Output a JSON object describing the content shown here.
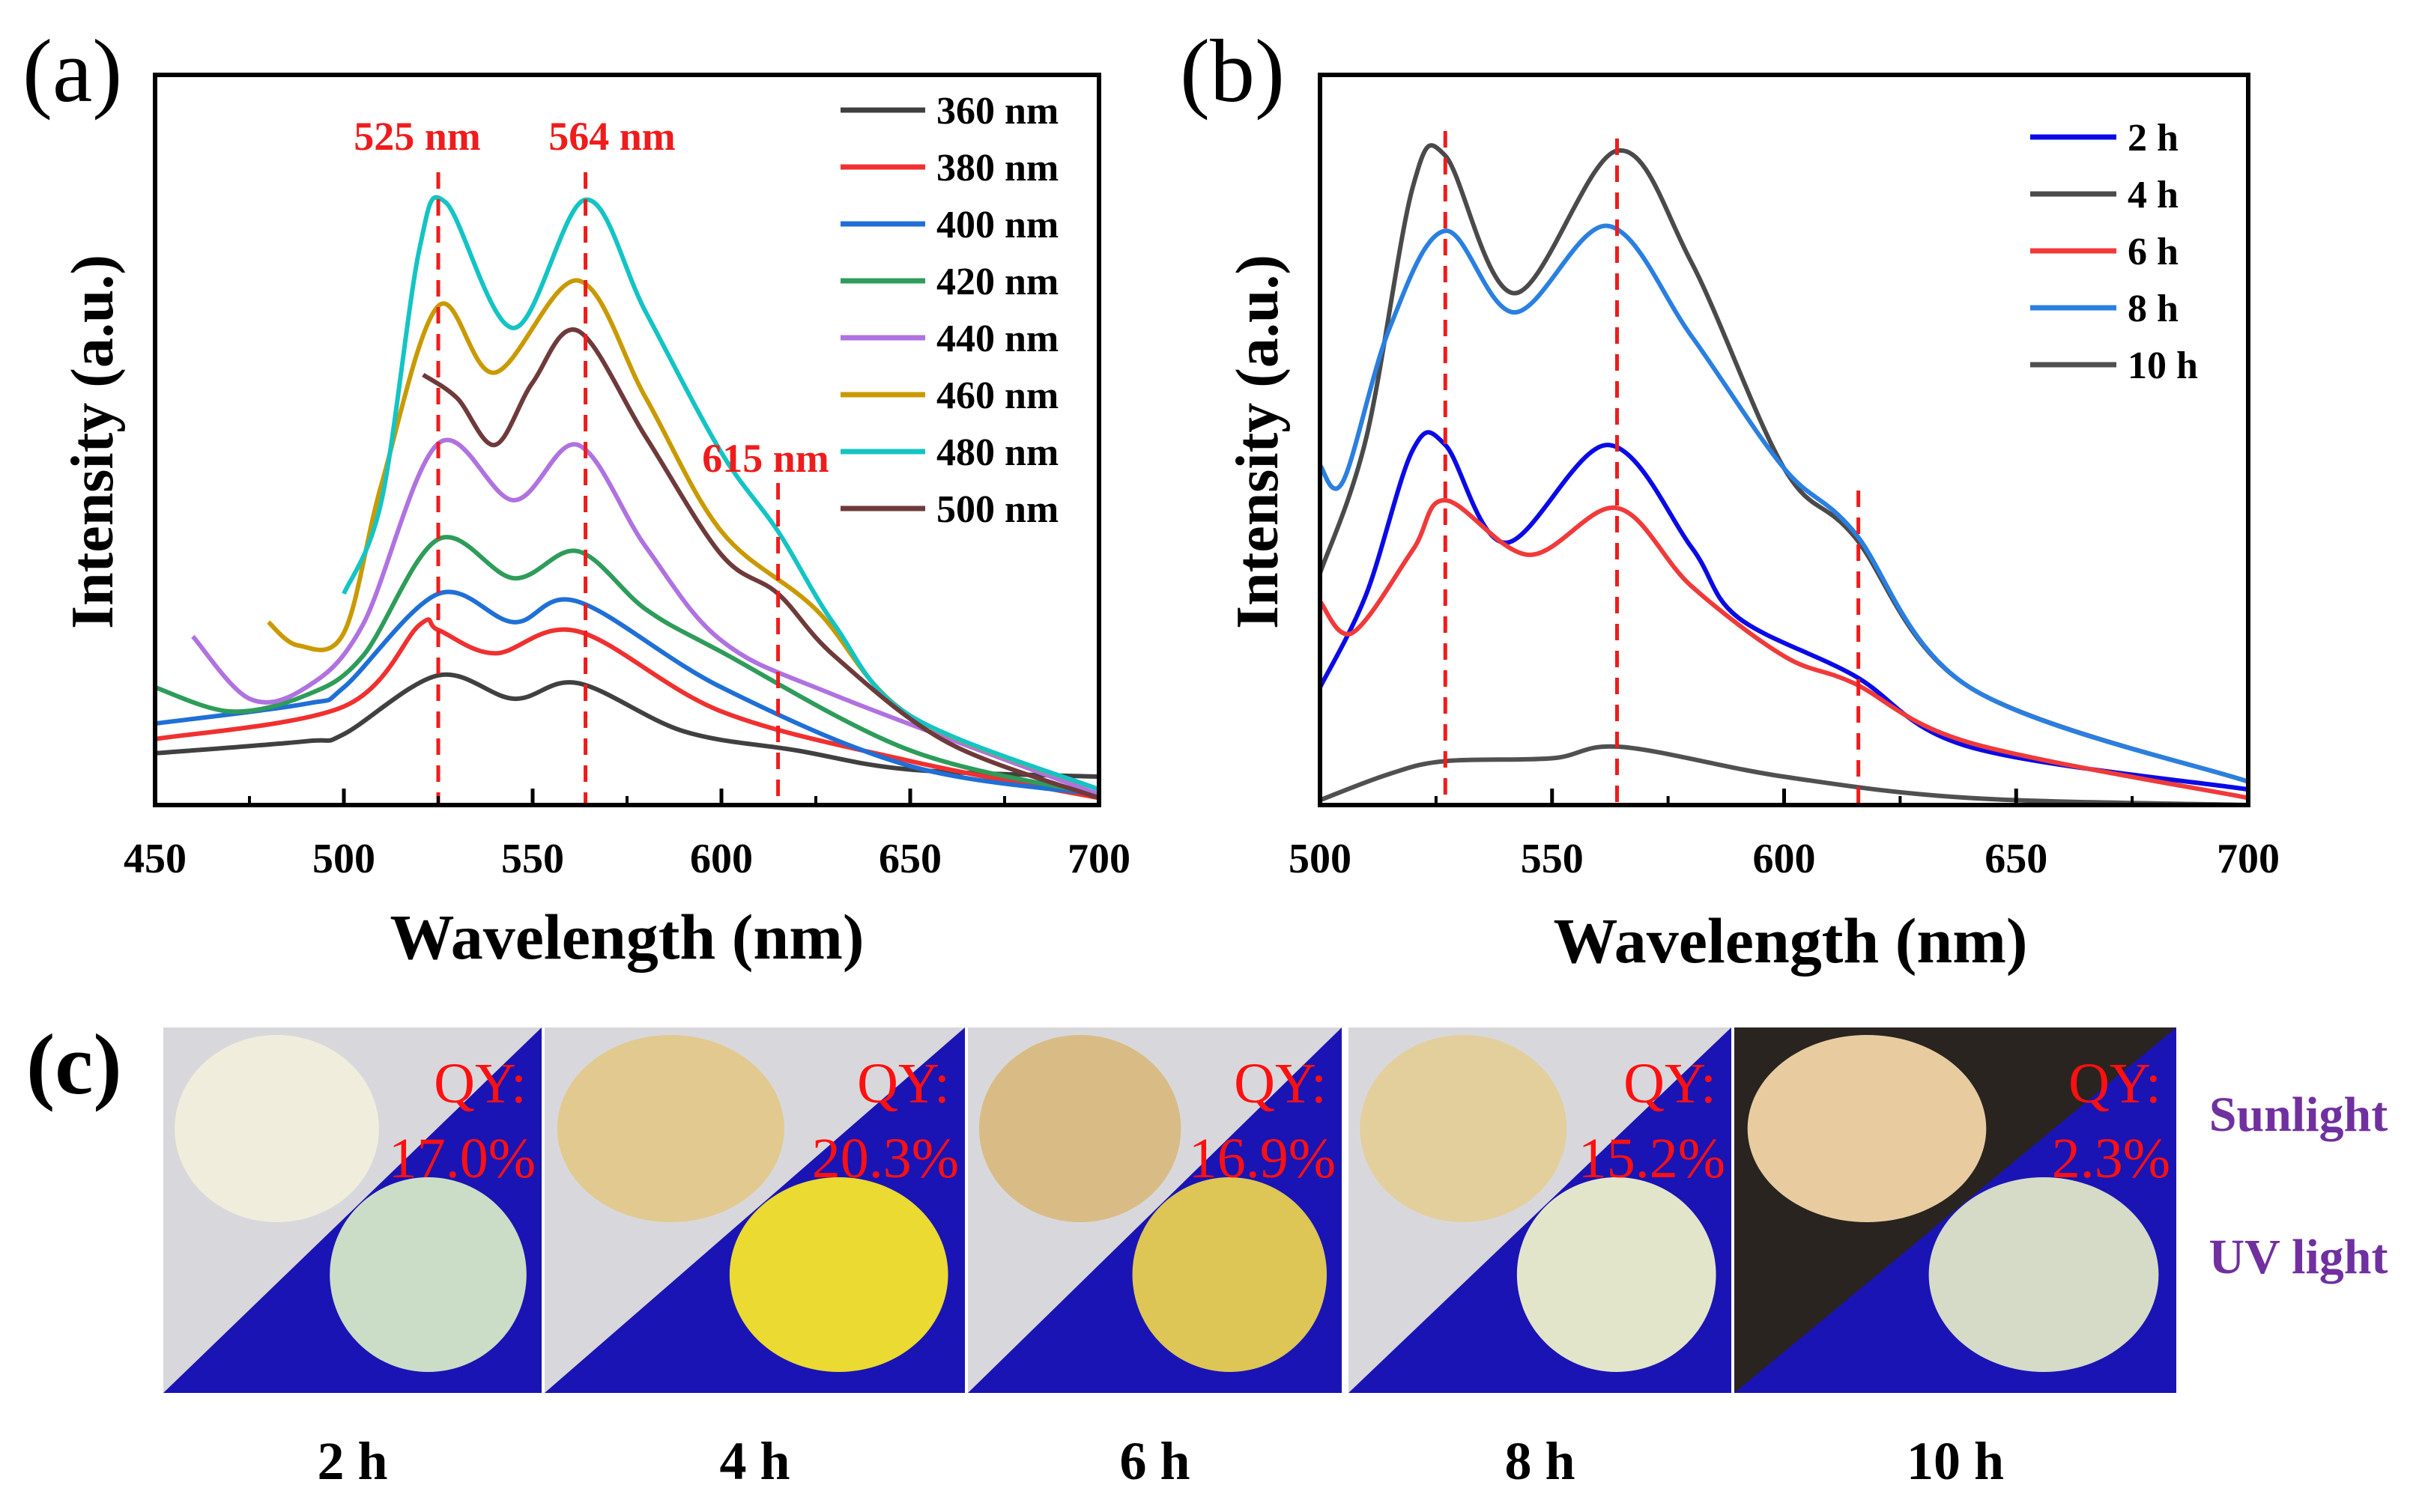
{
  "chart_data": [
    {
      "panel_label": "(a)",
      "type": "line",
      "xlabel": "Wavelength (nm)",
      "ylabel": "Intensity (a.u.)",
      "xlim": [
        450,
        700
      ],
      "ylim": [
        0,
        103
      ],
      "xticks": [
        "450",
        "500",
        "550",
        "600",
        "650",
        "700"
      ],
      "legend_position": "top-right",
      "annotations": [
        {
          "text": "525 nm",
          "x": 525
        },
        {
          "text": "564 nm",
          "x": 564
        },
        {
          "text": "615 nm",
          "x": 615
        }
      ],
      "series": [
        {
          "name": "360 nm",
          "color": "#404040",
          "points": [
            [
              450,
              7.3
            ],
            [
              490,
              9
            ],
            [
              500,
              10
            ],
            [
              525,
              18.3
            ],
            [
              545,
              15
            ],
            [
              562,
              17.2
            ],
            [
              590,
              10.4
            ],
            [
              620,
              7.7
            ],
            [
              650,
              5
            ],
            [
              700,
              4
            ]
          ]
        },
        {
          "name": "380 nm",
          "color": "#f03030",
          "points": [
            [
              450,
              9.3
            ],
            [
              500,
              13.9
            ],
            [
              520,
              25.4
            ],
            [
              525,
              24.7
            ],
            [
              540,
              21.4
            ],
            [
              562,
              24.5
            ],
            [
              600,
              13.2
            ],
            [
              650,
              6.2
            ],
            [
              700,
              1
            ]
          ]
        },
        {
          "name": "400 nm",
          "color": "#1f6fd6",
          "points": [
            [
              450,
              11.5
            ],
            [
              490,
              14.3
            ],
            [
              500,
              16.6
            ],
            [
              525,
              29.8
            ],
            [
              545,
              25.8
            ],
            [
              562,
              28.7
            ],
            [
              600,
              16.6
            ],
            [
              650,
              5.5
            ],
            [
              700,
              1.5
            ]
          ]
        },
        {
          "name": "420 nm",
          "color": "#2e9c5a",
          "points": [
            [
              450,
              16.6
            ],
            [
              470,
              13.2
            ],
            [
              490,
              15.5
            ],
            [
              505,
              21
            ],
            [
              525,
              37.5
            ],
            [
              545,
              32
            ],
            [
              562,
              35.8
            ],
            [
              580,
              27.6
            ],
            [
              600,
              21.6
            ],
            [
              650,
              7.7
            ],
            [
              700,
              1.5
            ]
          ]
        },
        {
          "name": "440 nm",
          "color": "#b072e0",
          "points": [
            [
              460,
              23.8
            ],
            [
              475,
              15
            ],
            [
              490,
              16.6
            ],
            [
              505,
              25.4
            ],
            [
              525,
              51
            ],
            [
              545,
              43
            ],
            [
              562,
              50.8
            ],
            [
              580,
              36.4
            ],
            [
              600,
              23.2
            ],
            [
              630,
              15.5
            ],
            [
              700,
              1.5
            ]
          ]
        },
        {
          "name": "460 nm",
          "color": "#c99a00",
          "points": [
            [
              480,
              25.8
            ],
            [
              488,
              22.5
            ],
            [
              500,
              24.3
            ],
            [
              510,
              45.3
            ],
            [
              525,
              70.4
            ],
            [
              540,
              61
            ],
            [
              562,
              74
            ],
            [
              580,
              57.4
            ],
            [
              600,
              38.6
            ],
            [
              625,
              27.6
            ],
            [
              650,
              12.6
            ],
            [
              700,
              2.2
            ]
          ]
        },
        {
          "name": "480 nm",
          "color": "#14c4c4",
          "points": [
            [
              500,
              29.8
            ],
            [
              510,
              43
            ],
            [
              520,
              78.4
            ],
            [
              527,
              85
            ],
            [
              545,
              67.3
            ],
            [
              564,
              85.4
            ],
            [
              580,
              69.5
            ],
            [
              600,
              49.7
            ],
            [
              615,
              38.6
            ],
            [
              630,
              25.4
            ],
            [
              650,
              12.6
            ],
            [
              700,
              2.2
            ]
          ]
        },
        {
          "name": "500 nm",
          "color": "#6e3a3a",
          "points": [
            [
              521,
              60.7
            ],
            [
              530,
              57.4
            ],
            [
              540,
              50.8
            ],
            [
              550,
              59.6
            ],
            [
              562,
              66.9
            ],
            [
              580,
              51.9
            ],
            [
              600,
              35.3
            ],
            [
              615,
              29.8
            ],
            [
              630,
              21
            ],
            [
              660,
              8.8
            ],
            [
              700,
              1
            ]
          ]
        }
      ]
    },
    {
      "panel_label": "(b)",
      "type": "line",
      "xlabel": "Wavelength (nm)",
      "ylabel": "Intensity (a.u.)",
      "xlim": [
        500,
        700
      ],
      "ylim": [
        0,
        103
      ],
      "xticks": [
        "500",
        "550",
        "600",
        "650",
        "700"
      ],
      "legend_position": "top-right",
      "annotations": [
        {
          "x": 527
        },
        {
          "x": 564
        },
        {
          "x": 616
        }
      ],
      "series": [
        {
          "name": "2 h",
          "color": "#0a0ae6",
          "points": [
            [
              500,
              16.6
            ],
            [
              510,
              29.8
            ],
            [
              520,
              50.1
            ],
            [
              527,
              50.8
            ],
            [
              540,
              37
            ],
            [
              562,
              50.8
            ],
            [
              580,
              36.4
            ],
            [
              590,
              26.5
            ],
            [
              615,
              18.3
            ],
            [
              640,
              8.2
            ],
            [
              700,
              2.2
            ]
          ]
        },
        {
          "name": "4 h",
          "color": "#4a4a4a",
          "points": [
            [
              500,
              32.7
            ],
            [
              510,
              51.9
            ],
            [
              520,
              87.2
            ],
            [
              527,
              91.6
            ],
            [
              542,
              72.2
            ],
            [
              564,
              92.3
            ],
            [
              580,
              76.6
            ],
            [
              600,
              47.5
            ],
            [
              615,
              38
            ],
            [
              640,
              16.6
            ],
            [
              700,
              3.3
            ]
          ]
        },
        {
          "name": "6 h",
          "color": "#f03a3a",
          "points": [
            [
              500,
              28.7
            ],
            [
              507,
              24.3
            ],
            [
              520,
              36
            ],
            [
              527,
              43
            ],
            [
              545,
              35.3
            ],
            [
              564,
              41.9
            ],
            [
              580,
              30.9
            ],
            [
              600,
              21
            ],
            [
              615,
              17.2
            ],
            [
              640,
              8.8
            ],
            [
              700,
              1
            ]
          ]
        },
        {
          "name": "8 h",
          "color": "#2a7fe0",
          "points": [
            [
              500,
              47.9
            ],
            [
              505,
              45.7
            ],
            [
              515,
              67.3
            ],
            [
              527,
              81
            ],
            [
              542,
              69.5
            ],
            [
              562,
              81.7
            ],
            [
              580,
              66.2
            ],
            [
              600,
              47.5
            ],
            [
              615,
              38.6
            ],
            [
              640,
              16.6
            ],
            [
              700,
              3.3
            ]
          ]
        },
        {
          "name": "10 h",
          "color": "#505050",
          "points": [
            [
              500,
              0.7
            ],
            [
              515,
              4.4
            ],
            [
              527,
              6.2
            ],
            [
              550,
              6.6
            ],
            [
              565,
              8.2
            ],
            [
              600,
              4
            ],
            [
              640,
              1
            ],
            [
              700,
              0
            ]
          ]
        }
      ]
    }
  ],
  "panel_c": {
    "panel_label": "(c)",
    "sunlight_label": "Sunlight",
    "uv_label": "UV light",
    "label_color": "#7030a0",
    "samples": [
      {
        "time": "2 h",
        "qy_label": "QY:",
        "qy_value": "17.0%",
        "sun_color": "#f1eedc",
        "uv_color": "#d6e8c8"
      },
      {
        "time": "4 h",
        "qy_label": "QY:",
        "qy_value": "20.3%",
        "sun_color": "#e3c88a",
        "uv_color": "#f5e52a"
      },
      {
        "time": "6 h",
        "qy_label": "QY:",
        "qy_value": "16.9%",
        "sun_color": "#d9bb80",
        "uv_color": "#e8d050"
      },
      {
        "time": "8 h",
        "qy_label": "QY:",
        "qy_value": "15.2%",
        "sun_color": "#e3cf98",
        "uv_color": "#eef0cc"
      },
      {
        "time": "10 h",
        "qy_label": "QY:",
        "qy_value": "2.3%",
        "sun_color": "#f2d6a8",
        "uv_color": "#dfe6c8"
      }
    ]
  }
}
